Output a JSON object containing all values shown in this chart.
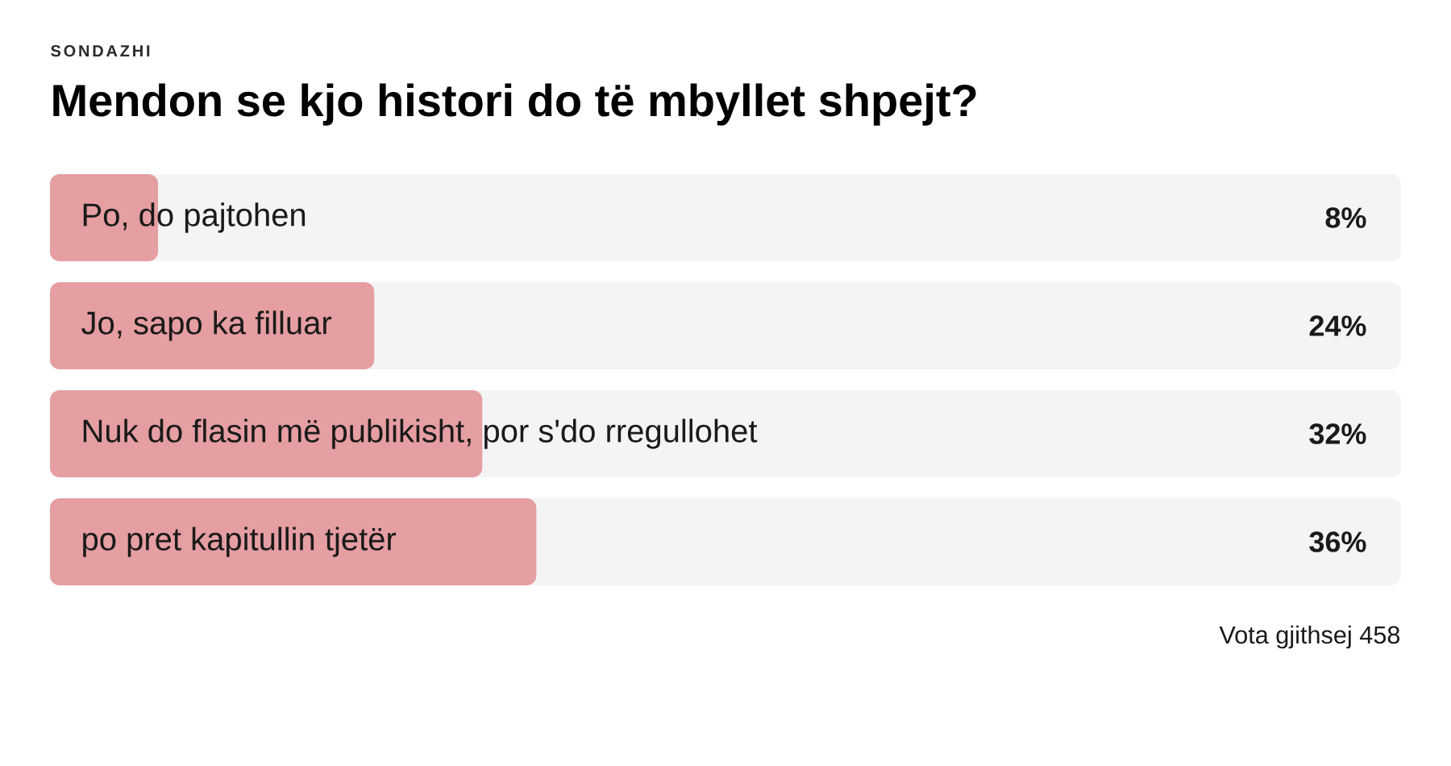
{
  "chart_data": {
    "type": "bar",
    "orientation": "horizontal",
    "subtitle": "SONDAZHI",
    "title": "Mendon se kjo histori do të mbyllet shpejt?",
    "categories": [
      "Po, do pajtohen",
      "Jo, sapo ka filluar",
      "Nuk do flasin më publikisht, por s'do rregullohet",
      "po pret kapitullin tjetër"
    ],
    "values": [
      8,
      24,
      32,
      36
    ],
    "color": "#e59ea2",
    "value_labels": [
      "8%",
      "24%",
      "32%",
      "36%"
    ],
    "xlim": [
      0,
      100
    ],
    "tick_labels": "y",
    "annotations": [
      "Vota gjithsej 458"
    ]
  }
}
